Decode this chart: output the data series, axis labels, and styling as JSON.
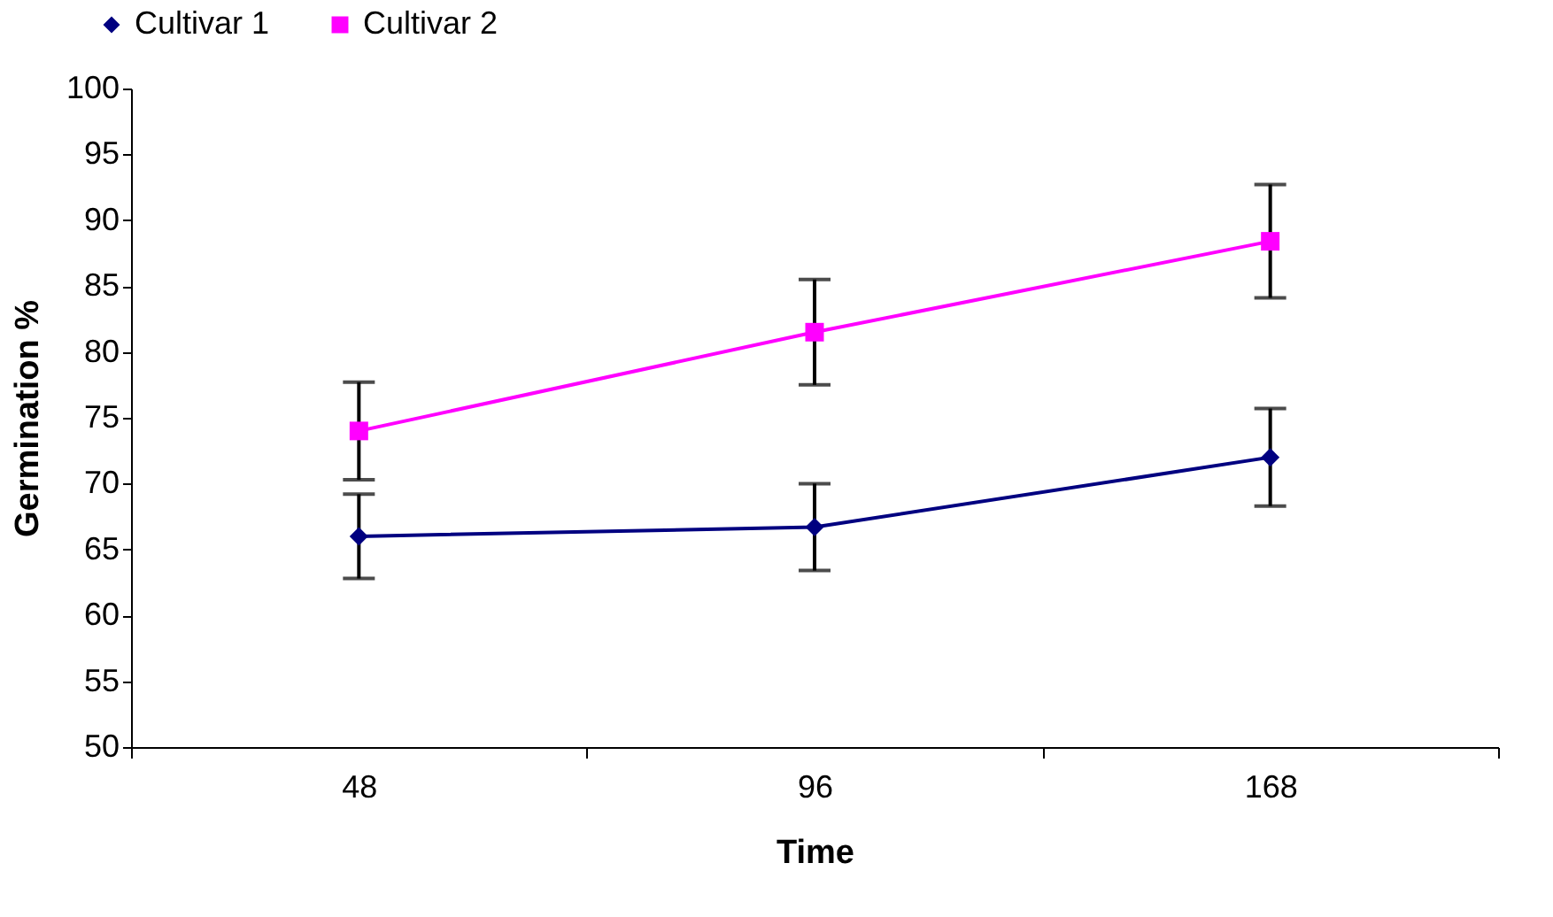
{
  "chart_data": {
    "type": "line",
    "xlabel": "Time",
    "ylabel": "Germination %",
    "categories": [
      "48",
      "96",
      "168"
    ],
    "series": [
      {
        "name": "Cultivar 1",
        "color": "#000080",
        "marker": "diamond",
        "values": [
          66.0,
          66.7,
          72.0
        ],
        "errors": [
          3.2,
          3.3,
          3.7
        ]
      },
      {
        "name": "Cultivar 2",
        "color": "#ff00ff",
        "marker": "square",
        "values": [
          74.0,
          81.5,
          88.4
        ],
        "errors": [
          3.7,
          4.0,
          4.3
        ]
      }
    ],
    "ylim": [
      50,
      100
    ],
    "yticks": [
      50,
      55,
      60,
      65,
      70,
      75,
      80,
      85,
      90,
      95,
      100
    ],
    "grid": false,
    "legend": "top left",
    "line_style": "solid"
  }
}
